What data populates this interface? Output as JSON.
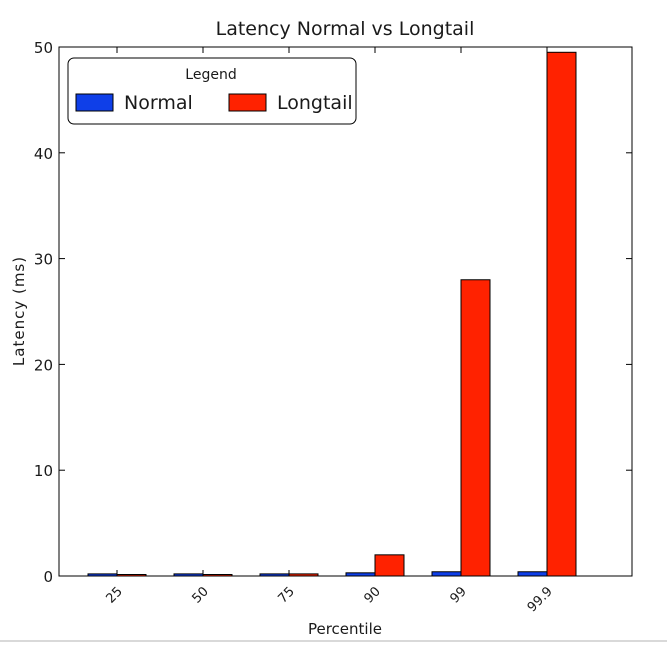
{
  "chart_data": {
    "type": "bar",
    "title": "Latency Normal vs Longtail",
    "xlabel": "Percentile",
    "ylabel": "Latency (ms)",
    "categories": [
      "25",
      "50",
      "75",
      "90",
      "99",
      "99.9"
    ],
    "series": [
      {
        "name": "Normal",
        "values": [
          0.2,
          0.2,
          0.2,
          0.3,
          0.4,
          0.4
        ],
        "color": "#0f3fe8"
      },
      {
        "name": "Longtail",
        "values": [
          0.1,
          0.1,
          0.2,
          2.0,
          28.0,
          49.5
        ],
        "color": "#ff2200"
      }
    ],
    "ylim": [
      0,
      50
    ],
    "yticks": [
      0,
      10,
      20,
      30,
      40,
      50
    ],
    "grid": false,
    "legend": {
      "title": "Legend",
      "placement": "top-left"
    },
    "tick_label_rotation": "45deg"
  }
}
